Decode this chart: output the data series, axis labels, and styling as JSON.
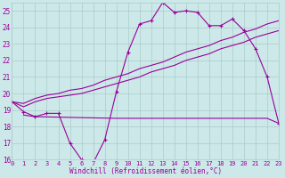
{
  "xlabel": "Windchill (Refroidissement éolien,°C)",
  "xlim": [
    0,
    23
  ],
  "ylim": [
    16,
    25.5
  ],
  "yticks": [
    16,
    17,
    18,
    19,
    20,
    21,
    22,
    23,
    24,
    25
  ],
  "xticks": [
    0,
    1,
    2,
    3,
    4,
    5,
    6,
    7,
    8,
    9,
    10,
    11,
    12,
    13,
    14,
    15,
    16,
    17,
    18,
    19,
    20,
    21,
    22,
    23
  ],
  "background_color": "#cce8e8",
  "grid_color": "#aacccc",
  "line_color": "#990099",
  "series": {
    "wavy": {
      "x": [
        0,
        1,
        2,
        3,
        4,
        5,
        6,
        7,
        8,
        9,
        10,
        11,
        12,
        13,
        14,
        15,
        16,
        17,
        18,
        19,
        20,
        21,
        22,
        23
      ],
      "y": [
        19.5,
        18.9,
        18.6,
        18.8,
        18.8,
        17.0,
        16.0,
        15.8,
        17.2,
        20.1,
        22.5,
        24.2,
        24.4,
        25.5,
        24.9,
        25.0,
        24.9,
        24.1,
        24.1,
        24.5,
        23.8,
        22.7,
        21.0,
        18.2
      ]
    },
    "flat": {
      "x": [
        1,
        2,
        9,
        16,
        21,
        22,
        23
      ],
      "y": [
        18.7,
        18.6,
        18.5,
        18.5,
        18.5,
        18.5,
        18.2
      ]
    },
    "diag1": {
      "x": [
        0,
        1,
        2,
        3,
        4,
        5,
        6,
        7,
        8,
        9,
        10,
        11,
        12,
        13,
        14,
        15,
        16,
        17,
        18,
        19,
        20,
        21,
        22,
        23
      ],
      "y": [
        19.5,
        19.2,
        19.5,
        19.7,
        19.8,
        19.9,
        20.0,
        20.2,
        20.4,
        20.6,
        20.8,
        21.0,
        21.3,
        21.5,
        21.7,
        22.0,
        22.2,
        22.4,
        22.7,
        22.9,
        23.1,
        23.4,
        23.6,
        23.8
      ]
    },
    "diag2": {
      "x": [
        0,
        1,
        2,
        3,
        4,
        5,
        6,
        7,
        8,
        9,
        10,
        11,
        12,
        13,
        14,
        15,
        16,
        17,
        18,
        19,
        20,
        21,
        22,
        23
      ],
      "y": [
        19.5,
        19.4,
        19.7,
        19.9,
        20.0,
        20.2,
        20.3,
        20.5,
        20.8,
        21.0,
        21.2,
        21.5,
        21.7,
        21.9,
        22.2,
        22.5,
        22.7,
        22.9,
        23.2,
        23.4,
        23.7,
        23.9,
        24.2,
        24.4
      ]
    }
  }
}
